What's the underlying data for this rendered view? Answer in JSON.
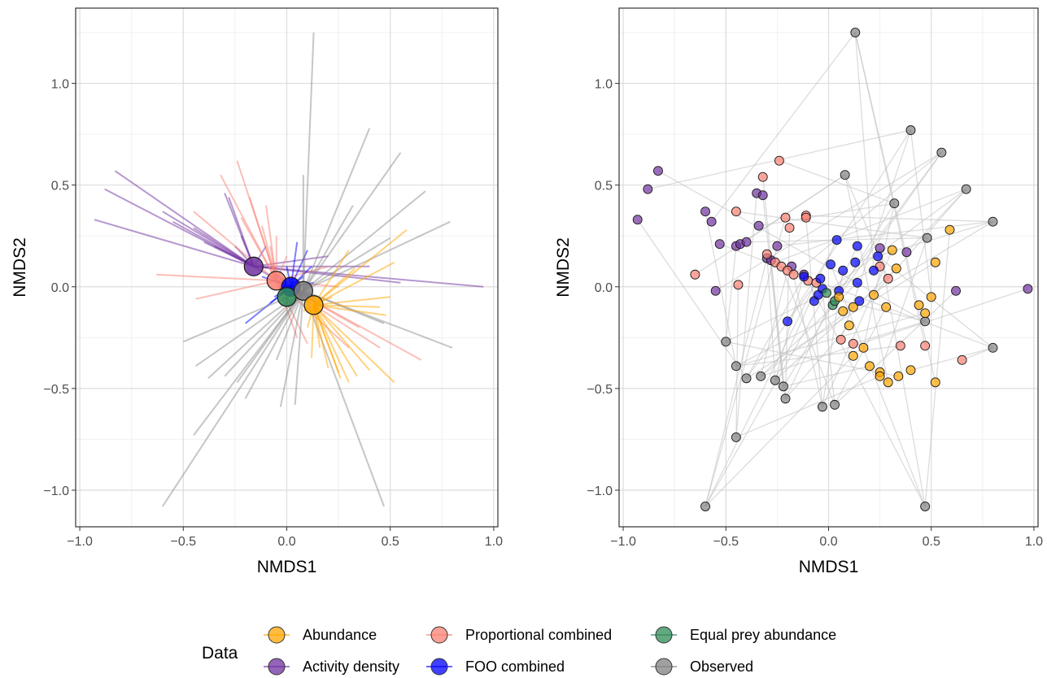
{
  "chart_data": [
    {
      "type": "scatter",
      "subtype": "centroid-spider",
      "xlabel": "NMDS1",
      "ylabel": "NMDS2",
      "xlim": [
        -1.02,
        1.02
      ],
      "ylim": [
        -1.18,
        1.37
      ],
      "xticks": [
        -1.0,
        -0.5,
        0.0,
        0.5,
        1.0
      ],
      "xtick_labels": [
        "−1.0",
        "−0.5",
        "0.0",
        "0.5",
        "1.0"
      ],
      "yticks": [
        -1.0,
        -0.5,
        0.0,
        0.5,
        1.0
      ],
      "ytick_labels": [
        "−1.0",
        "−0.5",
        "0.0",
        "0.5",
        "1.0"
      ],
      "grid": true,
      "centroids": [
        {
          "group": "Activity density",
          "x": -0.16,
          "y": 0.1
        },
        {
          "group": "Proportional combined",
          "x": -0.05,
          "y": 0.03
        },
        {
          "group": "FOO combined",
          "x": 0.02,
          "y": 0.0
        },
        {
          "group": "Equal prey abundance",
          "x": 0.0,
          "y": -0.05
        },
        {
          "group": "Observed",
          "x": 0.08,
          "y": -0.02
        },
        {
          "group": "Abundance",
          "x": 0.13,
          "y": -0.09
        }
      ],
      "spokes": [
        {
          "group": "Activity density",
          "points": [
            [
              -0.93,
              0.33
            ],
            [
              -0.88,
              0.48
            ],
            [
              -0.83,
              0.57
            ],
            [
              -0.6,
              0.37
            ],
            [
              -0.55,
              0.32
            ],
            [
              -0.45,
              0.29
            ],
            [
              -0.4,
              0.22
            ],
            [
              -0.35,
              0.2
            ],
            [
              -0.3,
              0.46
            ],
            [
              -0.28,
              0.44
            ],
            [
              -0.25,
              0.2
            ],
            [
              -0.22,
              0.25
            ],
            [
              -0.18,
              0.14
            ],
            [
              0.4,
              0.1
            ],
            [
              0.55,
              0.02
            ],
            [
              0.95,
              0.0
            ],
            [
              0.2,
              0.15
            ],
            [
              0.15,
              -0.08
            ],
            [
              -0.1,
              0.2
            ],
            [
              -0.05,
              0.09
            ]
          ]
        },
        {
          "group": "Proportional combined",
          "points": [
            [
              -0.63,
              0.06
            ],
            [
              -0.45,
              0.37
            ],
            [
              -0.44,
              -0.06
            ],
            [
              -0.32,
              0.55
            ],
            [
              -0.24,
              0.62
            ],
            [
              -0.22,
              0.34
            ],
            [
              -0.18,
              0.44
            ],
            [
              -0.1,
              0.4
            ],
            [
              -0.08,
              0.2
            ],
            [
              0.05,
              -0.25
            ],
            [
              0.1,
              -0.28
            ],
            [
              0.3,
              -0.3
            ],
            [
              0.35,
              -0.2
            ],
            [
              0.45,
              -0.3
            ],
            [
              0.65,
              -0.36
            ],
            [
              0.2,
              0.1
            ],
            [
              0.25,
              0.0
            ],
            [
              0.0,
              0.15
            ],
            [
              -0.12,
              0.3
            ],
            [
              -0.05,
              0.25
            ]
          ]
        },
        {
          "group": "FOO combined",
          "points": [
            [
              0.05,
              0.22
            ],
            [
              0.1,
              0.18
            ],
            [
              0.12,
              0.1
            ],
            [
              0.08,
              0.05
            ],
            [
              -0.05,
              0.06
            ],
            [
              -0.08,
              -0.08
            ],
            [
              -0.04,
              0.0
            ],
            [
              0.13,
              0.02
            ],
            [
              0.06,
              -0.02
            ],
            [
              0.0,
              0.1
            ],
            [
              -0.12,
              0.05
            ],
            [
              -0.2,
              -0.18
            ],
            [
              -0.06,
              -0.05
            ],
            [
              0.14,
              -0.06
            ]
          ]
        },
        {
          "group": "Equal prey abundance",
          "points": [
            [
              0.0,
              -0.1
            ],
            [
              0.02,
              -0.08
            ],
            [
              -0.01,
              -0.02
            ]
          ]
        },
        {
          "group": "Observed",
          "points": [
            [
              0.13,
              1.25
            ],
            [
              0.4,
              0.78
            ],
            [
              0.55,
              0.66
            ],
            [
              0.67,
              0.47
            ],
            [
              0.79,
              0.32
            ],
            [
              0.32,
              0.4
            ],
            [
              0.5,
              0.24
            ],
            [
              0.8,
              -0.3
            ],
            [
              0.47,
              -0.18
            ],
            [
              0.47,
              -1.08
            ],
            [
              0.04,
              -0.58
            ],
            [
              -0.03,
              -0.59
            ],
            [
              -0.6,
              -1.08
            ],
            [
              -0.45,
              -0.73
            ],
            [
              -0.5,
              -0.27
            ],
            [
              -0.44,
              -0.39
            ],
            [
              -0.38,
              -0.45
            ],
            [
              -0.3,
              -0.44
            ],
            [
              -0.24,
              -0.47
            ],
            [
              -0.2,
              -0.55
            ],
            [
              -0.05,
              -0.36
            ],
            [
              0.08,
              0.55
            ]
          ]
        },
        {
          "group": "Abundance",
          "points": [
            [
              0.58,
              0.28
            ],
            [
              0.52,
              0.12
            ],
            [
              0.5,
              -0.05
            ],
            [
              0.45,
              -0.1
            ],
            [
              0.48,
              -0.14
            ],
            [
              0.52,
              -0.47
            ],
            [
              0.4,
              -0.41
            ],
            [
              0.34,
              -0.44
            ],
            [
              0.3,
              -0.47
            ],
            [
              0.25,
              -0.42
            ],
            [
              0.26,
              -0.45
            ],
            [
              0.2,
              -0.4
            ],
            [
              0.16,
              -0.3
            ],
            [
              0.12,
              -0.35
            ],
            [
              0.1,
              -0.2
            ],
            [
              0.08,
              -0.12
            ],
            [
              0.3,
              0.18
            ],
            [
              0.33,
              0.09
            ],
            [
              0.22,
              -0.05
            ]
          ]
        }
      ]
    },
    {
      "type": "scatter",
      "xlabel": "NMDS1",
      "ylabel": "NMDS2",
      "xlim": [
        -1.02,
        1.02
      ],
      "ylim": [
        -1.18,
        1.37
      ],
      "xticks": [
        -1.0,
        -0.5,
        0.0,
        0.5,
        1.0
      ],
      "xtick_labels": [
        "−1.0",
        "−0.5",
        "0.0",
        "0.5",
        "1.0"
      ],
      "yticks": [
        -1.0,
        -0.5,
        0.0,
        0.5,
        1.0
      ],
      "ytick_labels": [
        "−1.0",
        "−0.5",
        "0.0",
        "0.5",
        "1.0"
      ],
      "grid": true,
      "connector_color": "#bfbfbf",
      "series": [
        {
          "name": "Observed",
          "points": [
            [
              0.13,
              1.25
            ],
            [
              0.4,
              0.77
            ],
            [
              0.55,
              0.66
            ],
            [
              0.67,
              0.48
            ],
            [
              0.8,
              0.32
            ],
            [
              0.32,
              0.41
            ],
            [
              0.48,
              0.24
            ],
            [
              0.8,
              -0.3
            ],
            [
              0.47,
              -0.17
            ],
            [
              0.47,
              -1.08
            ],
            [
              0.03,
              -0.58
            ],
            [
              -0.03,
              -0.59
            ],
            [
              -0.6,
              -1.08
            ],
            [
              -0.45,
              -0.74
            ],
            [
              -0.5,
              -0.27
            ],
            [
              -0.45,
              -0.39
            ],
            [
              -0.4,
              -0.45
            ],
            [
              -0.33,
              -0.44
            ],
            [
              -0.26,
              -0.46
            ],
            [
              -0.21,
              -0.55
            ],
            [
              -0.22,
              -0.49
            ],
            [
              0.08,
              0.55
            ]
          ]
        },
        {
          "name": "Activity density",
          "points": [
            [
              -0.93,
              0.33
            ],
            [
              -0.88,
              0.48
            ],
            [
              -0.83,
              0.57
            ],
            [
              -0.6,
              0.37
            ],
            [
              -0.57,
              0.32
            ],
            [
              -0.53,
              0.21
            ],
            [
              -0.45,
              0.2
            ],
            [
              -0.43,
              0.21
            ],
            [
              -0.4,
              0.22
            ],
            [
              -0.35,
              0.46
            ],
            [
              -0.32,
              0.45
            ],
            [
              -0.34,
              0.3
            ],
            [
              -0.3,
              0.14
            ],
            [
              -0.28,
              0.13
            ],
            [
              -0.25,
              0.2
            ],
            [
              -0.18,
              0.1
            ],
            [
              -0.12,
              0.06
            ],
            [
              0.38,
              0.17
            ],
            [
              0.62,
              -0.02
            ],
            [
              0.97,
              -0.01
            ],
            [
              -0.55,
              -0.02
            ],
            [
              0.25,
              0.19
            ]
          ]
        },
        {
          "name": "Proportional combined",
          "points": [
            [
              -0.65,
              0.06
            ],
            [
              -0.45,
              0.37
            ],
            [
              -0.44,
              0.01
            ],
            [
              -0.32,
              0.54
            ],
            [
              -0.24,
              0.62
            ],
            [
              -0.21,
              0.34
            ],
            [
              -0.19,
              0.29
            ],
            [
              -0.11,
              0.35
            ],
            [
              -0.11,
              0.34
            ],
            [
              -0.3,
              0.16
            ],
            [
              -0.26,
              0.12
            ],
            [
              -0.23,
              0.1
            ],
            [
              -0.2,
              0.08
            ],
            [
              -0.17,
              0.06
            ],
            [
              -0.1,
              0.03
            ],
            [
              -0.06,
              0.02
            ],
            [
              0.06,
              -0.26
            ],
            [
              0.12,
              -0.28
            ],
            [
              0.35,
              -0.29
            ],
            [
              0.47,
              -0.29
            ],
            [
              0.65,
              -0.36
            ],
            [
              0.25,
              0.1
            ],
            [
              0.29,
              0.04
            ]
          ]
        },
        {
          "name": "FOO combined",
          "points": [
            [
              0.04,
              0.23
            ],
            [
              0.14,
              0.2
            ],
            [
              0.13,
              0.12
            ],
            [
              0.07,
              0.08
            ],
            [
              -0.04,
              0.04
            ],
            [
              -0.07,
              -0.07
            ],
            [
              -0.03,
              -0.01
            ],
            [
              0.14,
              0.02
            ],
            [
              0.05,
              -0.02
            ],
            [
              0.01,
              0.11
            ],
            [
              -0.12,
              0.05
            ],
            [
              -0.2,
              -0.17
            ],
            [
              -0.05,
              -0.04
            ],
            [
              0.15,
              -0.07
            ],
            [
              0.22,
              0.08
            ],
            [
              0.24,
              0.15
            ]
          ]
        },
        {
          "name": "Equal prey abundance",
          "points": [
            [
              0.02,
              -0.09
            ],
            [
              0.03,
              -0.07
            ],
            [
              -0.01,
              -0.03
            ]
          ]
        },
        {
          "name": "Abundance",
          "points": [
            [
              0.59,
              0.28
            ],
            [
              0.52,
              0.12
            ],
            [
              0.5,
              -0.05
            ],
            [
              0.44,
              -0.09
            ],
            [
              0.47,
              -0.13
            ],
            [
              0.52,
              -0.47
            ],
            [
              0.4,
              -0.41
            ],
            [
              0.34,
              -0.44
            ],
            [
              0.29,
              -0.47
            ],
            [
              0.25,
              -0.42
            ],
            [
              0.25,
              -0.44
            ],
            [
              0.2,
              -0.39
            ],
            [
              0.17,
              -0.3
            ],
            [
              0.12,
              -0.34
            ],
            [
              0.1,
              -0.19
            ],
            [
              0.07,
              -0.12
            ],
            [
              0.31,
              0.18
            ],
            [
              0.33,
              0.09
            ],
            [
              0.22,
              -0.04
            ],
            [
              0.28,
              -0.1
            ],
            [
              0.12,
              -0.1
            ],
            [
              0.05,
              -0.05
            ]
          ]
        }
      ]
    }
  ],
  "legend": {
    "title": "Data",
    "position": "bottom",
    "items": [
      {
        "label": "Abundance",
        "color": "#FFA500"
      },
      {
        "label": "Proportional combined",
        "color": "#FA8072"
      },
      {
        "label": "Equal prey abundance",
        "color": "#2E8B57"
      },
      {
        "label": "Activity density",
        "color": "#7030A0"
      },
      {
        "label": "FOO combined",
        "color": "#0000FF"
      },
      {
        "label": "Observed",
        "color": "#808080"
      }
    ]
  },
  "colors": {
    "Abundance": "#FFA500",
    "Activity density": "#7030A0",
    "Proportional combined": "#FA8072",
    "FOO combined": "#0000FF",
    "Equal prey abundance": "#2E8B57",
    "Observed": "#808080",
    "panel_border": "#333333",
    "grid_major": "#dcdcdc",
    "grid_minor": "#f0f0f0"
  }
}
